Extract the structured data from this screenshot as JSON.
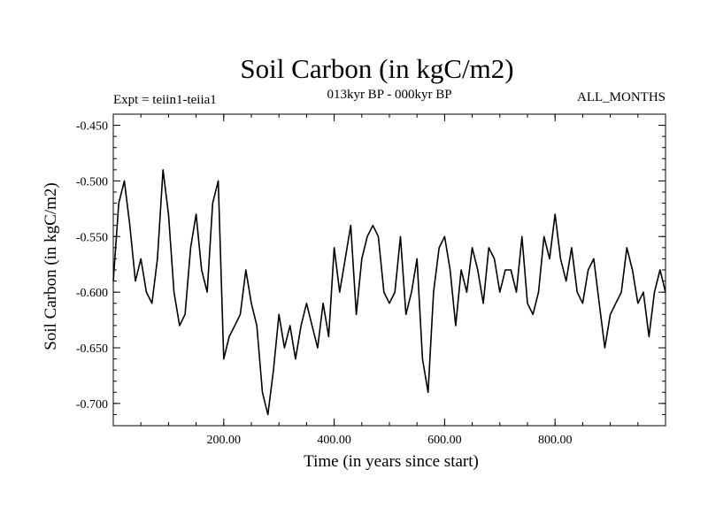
{
  "chart_data": {
    "type": "line",
    "title": "Soil Carbon (in kgC/m2)",
    "header_left": "Expt = teiin1-teiia1",
    "header_center": "013kyr BP - 000kyr BP",
    "header_right": "ALL_MONTHS",
    "xlabel": "Time (in years since start)",
    "ylabel": "Soil Carbon (in kgC/m2)",
    "xlim": [
      0,
      1000
    ],
    "ylim": [
      -0.72,
      -0.44
    ],
    "xticks": [
      200,
      400,
      600,
      800
    ],
    "xtick_labels": [
      "200.00",
      "400.00",
      "600.00",
      "800.00"
    ],
    "yticks": [
      -0.45,
      -0.5,
      -0.55,
      -0.6,
      -0.65,
      -0.7
    ],
    "ytick_labels": [
      "-0.450",
      "-0.500",
      "-0.550",
      "-0.600",
      "-0.650",
      "-0.700"
    ],
    "grid": false,
    "line_color": "#000000",
    "x": [
      0,
      10,
      20,
      30,
      40,
      50,
      60,
      70,
      80,
      90,
      100,
      110,
      120,
      130,
      140,
      150,
      160,
      170,
      180,
      190,
      200,
      210,
      220,
      230,
      240,
      250,
      260,
      270,
      280,
      290,
      300,
      310,
      320,
      330,
      340,
      350,
      360,
      370,
      380,
      390,
      400,
      410,
      420,
      430,
      440,
      450,
      460,
      470,
      480,
      490,
      500,
      510,
      520,
      530,
      540,
      550,
      560,
      570,
      580,
      590,
      600,
      610,
      620,
      630,
      640,
      650,
      660,
      670,
      680,
      690,
      700,
      710,
      720,
      730,
      740,
      750,
      760,
      770,
      780,
      790,
      800,
      810,
      820,
      830,
      840,
      850,
      860,
      870,
      880,
      890,
      900,
      910,
      920,
      930,
      940,
      950,
      960,
      970,
      980,
      990,
      1000
    ],
    "values": [
      -0.59,
      -0.52,
      -0.5,
      -0.54,
      -0.59,
      -0.57,
      -0.6,
      -0.61,
      -0.57,
      -0.49,
      -0.53,
      -0.6,
      -0.63,
      -0.62,
      -0.56,
      -0.53,
      -0.58,
      -0.6,
      -0.52,
      -0.5,
      -0.66,
      -0.64,
      -0.63,
      -0.62,
      -0.58,
      -0.61,
      -0.63,
      -0.69,
      -0.71,
      -0.67,
      -0.62,
      -0.65,
      -0.63,
      -0.66,
      -0.63,
      -0.61,
      -0.63,
      -0.65,
      -0.61,
      -0.64,
      -0.56,
      -0.6,
      -0.57,
      -0.54,
      -0.62,
      -0.57,
      -0.55,
      -0.54,
      -0.55,
      -0.6,
      -0.61,
      -0.6,
      -0.55,
      -0.62,
      -0.6,
      -0.57,
      -0.66,
      -0.69,
      -0.6,
      -0.56,
      -0.55,
      -0.58,
      -0.63,
      -0.58,
      -0.6,
      -0.56,
      -0.58,
      -0.61,
      -0.56,
      -0.57,
      -0.6,
      -0.58,
      -0.58,
      -0.6,
      -0.55,
      -0.61,
      -0.62,
      -0.6,
      -0.55,
      -0.57,
      -0.53,
      -0.57,
      -0.59,
      -0.56,
      -0.6,
      -0.61,
      -0.58,
      -0.57,
      -0.61,
      -0.65,
      -0.62,
      -0.61,
      -0.6,
      -0.56,
      -0.58,
      -0.61,
      -0.6,
      -0.64,
      -0.6,
      -0.58,
      -0.6
    ]
  }
}
